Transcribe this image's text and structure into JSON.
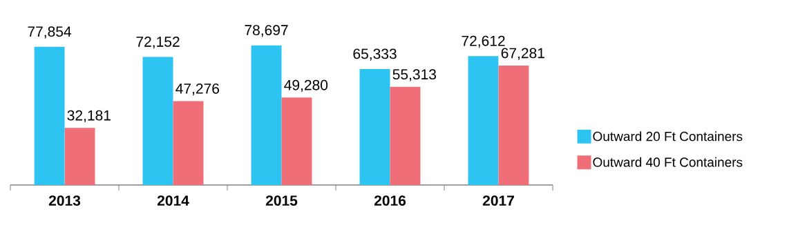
{
  "chart_data": {
    "type": "bar",
    "categories": [
      "2013",
      "2014",
      "2015",
      "2016",
      "2017"
    ],
    "series": [
      {
        "name": "Outward 20 Ft Containers",
        "color": "#2ec4f2",
        "values": [
          77854,
          72152,
          78697,
          65333,
          72612
        ],
        "value_labels": [
          "77,854",
          "72,152",
          "78,697",
          "65,333",
          "72,612"
        ]
      },
      {
        "name": "Outward 40 Ft Containers",
        "color": "#f06e78",
        "values": [
          32181,
          47276,
          49280,
          55313,
          67281
        ],
        "value_labels": [
          "32,181",
          "47,276",
          "49,280",
          "55,313",
          "67,281"
        ]
      }
    ],
    "legend": "right",
    "grid": false
  }
}
